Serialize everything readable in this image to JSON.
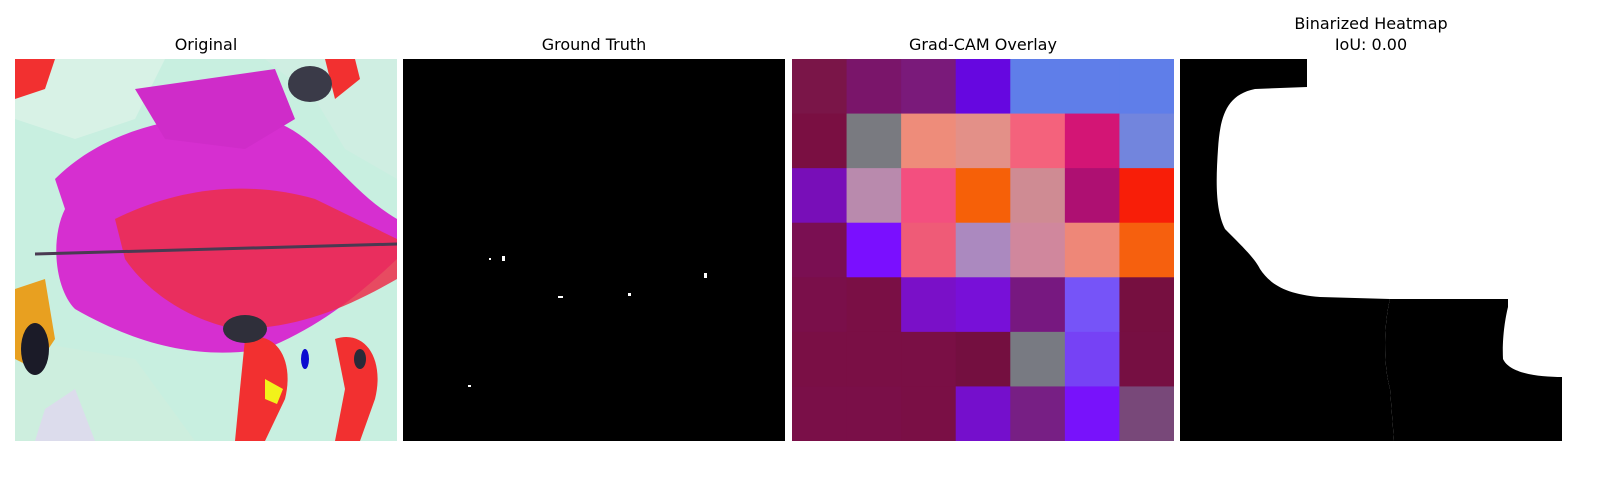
{
  "panels": [
    {
      "title": "Original"
    },
    {
      "title": "Ground Truth"
    },
    {
      "title": "Grad-CAM Overlay"
    },
    {
      "title_line1": "Binarized Heatmap",
      "title_line2": "IoU: 0.00"
    }
  ],
  "gradcam_grid_colors": [
    [
      "#7a1548",
      "#7a156a",
      "#7a1a7a",
      "#6607e0",
      "#5f7ee9",
      "#5f7ee9",
      "#5f7ee9"
    ],
    [
      "#7a0f42",
      "#797a80",
      "#ee8c7a",
      "#e39088",
      "#f4627c",
      "#d31575",
      "#7285dd"
    ],
    [
      "#780eb8",
      "#b98aad",
      "#f34f7f",
      "#f66008",
      "#cf8b93",
      "#ae1072",
      "#f81e08"
    ],
    [
      "#7a0f52",
      "#7a0fff",
      "#ef5b77",
      "#ab89bf",
      "#d0879d",
      "#ee8778",
      "#f6600e"
    ],
    [
      "#7a0f4a",
      "#7a0f45",
      "#7a10c8",
      "#7810d8",
      "#771880",
      "#7654f8",
      "#760f40"
    ],
    [
      "#7a0f45",
      "#7a0f45",
      "#7a0f45",
      "#740f40",
      "#787a82",
      "#7642f5",
      "#760f42"
    ],
    [
      "#7a0f48",
      "#7a0f48",
      "#7a0f45",
      "#750fcc",
      "#771f84",
      "#7812fb",
      "#784879"
    ]
  ]
}
